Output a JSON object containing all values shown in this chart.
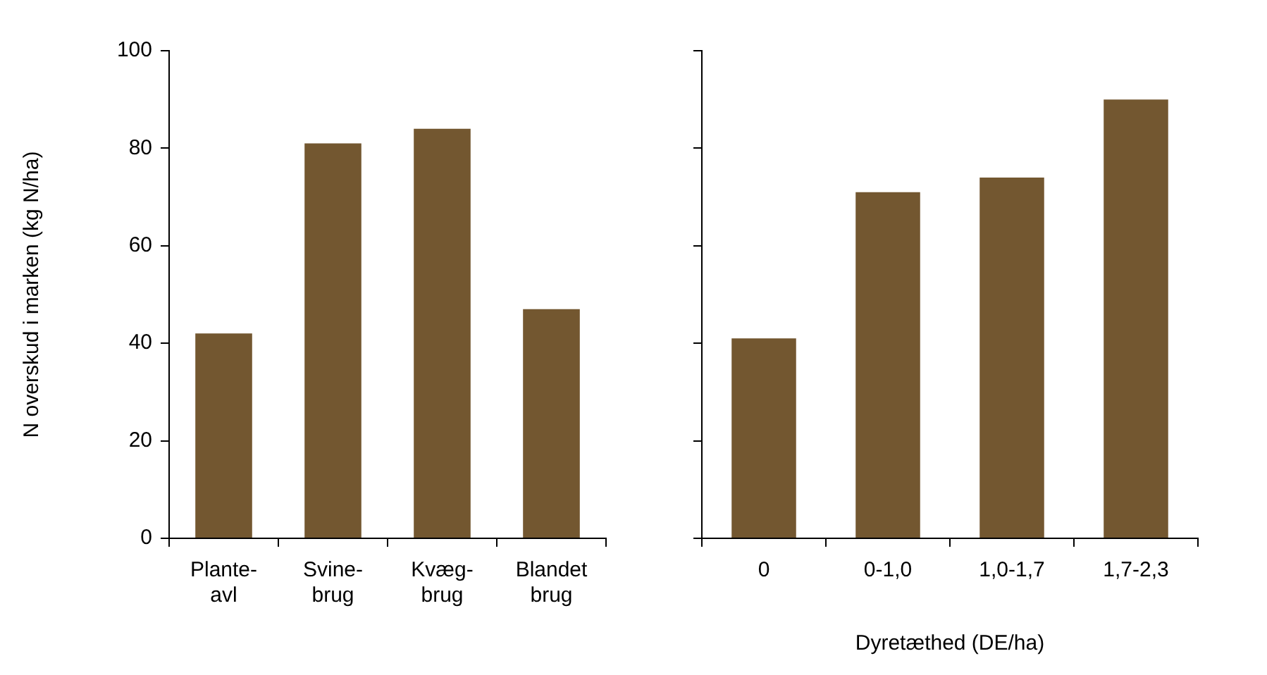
{
  "chart_data": [
    {
      "type": "bar",
      "ylabel": "N overskud i marken (kg N/ha)",
      "categories": [
        "Plante-\navl",
        "Svine-\nbrug",
        "Kvæg-\nbrug",
        "Blandet\nbrug"
      ],
      "values": [
        42,
        81,
        84,
        47
      ],
      "color": "#735730",
      "ylim": [
        0,
        100
      ],
      "yticks": [
        0,
        20,
        40,
        60,
        80,
        100
      ],
      "grid": false,
      "legend": false
    },
    {
      "type": "bar",
      "xlabel": "Dyretæthed (DE/ha)",
      "categories": [
        "0",
        "0-1,0",
        "1,0-1,7",
        "1,7-2,3"
      ],
      "values": [
        41,
        71,
        74,
        90
      ],
      "color": "#735730",
      "ylim": [
        0,
        100
      ],
      "yticks": [
        {
          "value": 0,
          "label": null
        },
        {
          "value": 20,
          "label": null
        },
        {
          "value": 40,
          "label": null
        },
        {
          "value": 60,
          "label": null
        },
        {
          "value": 80,
          "label": null
        },
        {
          "value": 100,
          "label": null
        }
      ],
      "tick_labels": "x",
      "grid": false,
      "legend": false
    }
  ]
}
